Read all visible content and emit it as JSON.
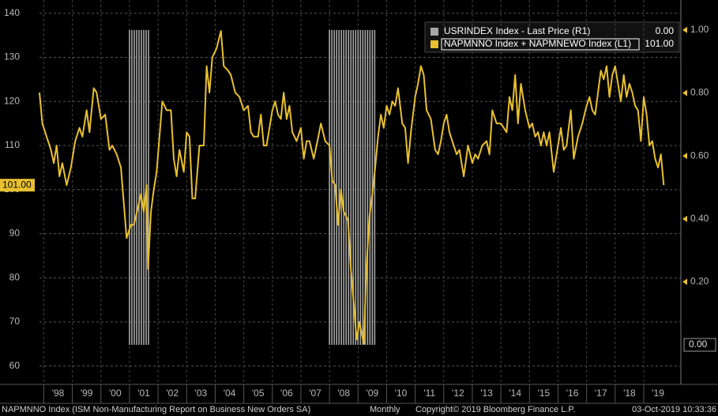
{
  "chart_data": {
    "type": "line",
    "footer": {
      "source": "NAPMNNO Index (ISM Non-Manufacturing Report on Business New Orders SA)",
      "frequency": "Monthly",
      "copyright": "Copyright© 2019 Bloomberg Finance L.P.",
      "timestamp": "03-Oct-2019 10:33:36"
    },
    "xlim": [
      1997.85,
      2020.3
    ],
    "xticks": [
      {
        "value": 1998.5,
        "label": "'98"
      },
      {
        "value": 1999.5,
        "label": "'99"
      },
      {
        "value": 2000.5,
        "label": "'00"
      },
      {
        "value": 2001.5,
        "label": "'01"
      },
      {
        "value": 2002.5,
        "label": "'02"
      },
      {
        "value": 2003.5,
        "label": "'03"
      },
      {
        "value": 2004.5,
        "label": "'04"
      },
      {
        "value": 2005.5,
        "label": "'05"
      },
      {
        "value": 2006.5,
        "label": "'06"
      },
      {
        "value": 2007.5,
        "label": "'07"
      },
      {
        "value": 2008.5,
        "label": "'08"
      },
      {
        "value": 2009.5,
        "label": "'09"
      },
      {
        "value": 2010.5,
        "label": "'10"
      },
      {
        "value": 2011.5,
        "label": "'11"
      },
      {
        "value": 2012.5,
        "label": "'12"
      },
      {
        "value": 2013.5,
        "label": "'13"
      },
      {
        "value": 2014.5,
        "label": "'14"
      },
      {
        "value": 2015.5,
        "label": "'15"
      },
      {
        "value": 2016.5,
        "label": "'16"
      },
      {
        "value": 2017.5,
        "label": "'17"
      },
      {
        "value": 2018.5,
        "label": "'18"
      },
      {
        "value": 2019.5,
        "label": "'19"
      }
    ],
    "ylim": [
      56,
      143
    ],
    "yticks": [
      60,
      70,
      80,
      90,
      100,
      110,
      120,
      130,
      140
    ],
    "y2lim": [
      -0.123,
      1.095
    ],
    "y2ticks": [
      {
        "value": 0.2,
        "label": "0.20"
      },
      {
        "value": 0.4,
        "label": "0.40"
      },
      {
        "value": 0.6,
        "label": "0.60"
      },
      {
        "value": 0.8,
        "label": "0.80"
      },
      {
        "value": 1.0,
        "label": "1.00"
      }
    ],
    "grid": true,
    "legend": "top-right",
    "series": [
      {
        "name": "USRINDEX Index - Last Price (R1)",
        "color": "#a6a6a6",
        "axis": "y2",
        "style": "bars",
        "last": {
          "value": 0,
          "label": "0.00"
        },
        "x": [
          2001.0,
          2001.083,
          2001.167,
          2001.25,
          2001.333,
          2001.417,
          2001.5,
          2001.583,
          2001.667,
          2008.0,
          2008.083,
          2008.167,
          2008.25,
          2008.333,
          2008.417,
          2008.5,
          2008.583,
          2008.667,
          2008.75,
          2008.833,
          2008.917,
          2009.0,
          2009.083,
          2009.167,
          2009.25,
          2009.333,
          2009.417,
          2009.5,
          2009.583
        ],
        "values": [
          1,
          1,
          1,
          1,
          1,
          1,
          1,
          1,
          1,
          1,
          1,
          1,
          1,
          1,
          1,
          1,
          1,
          1,
          1,
          1,
          1,
          1,
          1,
          1,
          1,
          1,
          1,
          1,
          1
        ]
      },
      {
        "name": "NAPMNNO Index + NAPMNEWO Index (L1)",
        "color": "#e8c030",
        "style": "line",
        "last": {
          "value": 101,
          "label": "101.00"
        },
        "x": [
          1997.85,
          1997.95,
          1998.1,
          1998.25,
          1998.35,
          1998.45,
          1998.55,
          1998.65,
          1998.8,
          1998.95,
          1999.1,
          1999.25,
          1999.35,
          1999.5,
          1999.6,
          1999.75,
          1999.85,
          2000.0,
          2000.15,
          2000.3,
          2000.4,
          2000.55,
          2000.7,
          2000.8,
          2000.9,
          2001.05,
          2001.15,
          2001.3,
          2001.4,
          2001.5,
          2001.6,
          2001.65,
          2001.75,
          2001.85,
          2001.95,
          2002.05,
          2002.15,
          2002.3,
          2002.45,
          2002.55,
          2002.65,
          2002.75,
          2002.9,
          2003.0,
          2003.1,
          2003.2,
          2003.3,
          2003.45,
          2003.6,
          2003.7,
          2003.8,
          2003.9,
          2004.05,
          2004.2,
          2004.3,
          2004.45,
          2004.55,
          2004.7,
          2004.85,
          2005.0,
          2005.15,
          2005.25,
          2005.35,
          2005.5,
          2005.6,
          2005.7,
          2005.8,
          2006.0,
          2006.1,
          2006.2,
          2006.3,
          2006.4,
          2006.5,
          2006.6,
          2006.7,
          2006.85,
          2007.0,
          2007.1,
          2007.2,
          2007.3,
          2007.45,
          2007.55,
          2007.7,
          2007.85,
          2008.0,
          2008.1,
          2008.2,
          2008.3,
          2008.4,
          2008.5,
          2008.65,
          2008.75,
          2008.85,
          2008.95,
          2009.05,
          2009.2,
          2009.3,
          2009.4,
          2009.5,
          2009.6,
          2009.7,
          2009.8,
          2009.9,
          2010.0,
          2010.1,
          2010.2,
          2010.3,
          2010.4,
          2010.55,
          2010.65,
          2010.75,
          2010.85,
          2011.0,
          2011.1,
          2011.2,
          2011.3,
          2011.4,
          2011.55,
          2011.7,
          2011.8,
          2011.9,
          2012.0,
          2012.1,
          2012.2,
          2012.3,
          2012.45,
          2012.55,
          2012.7,
          2012.85,
          2013.0,
          2013.1,
          2013.2,
          2013.35,
          2013.5,
          2013.6,
          2013.7,
          2013.85,
          2014.0,
          2014.1,
          2014.2,
          2014.3,
          2014.4,
          2014.5,
          2014.6,
          2014.7,
          2014.85,
          2015.0,
          2015.1,
          2015.2,
          2015.3,
          2015.4,
          2015.5,
          2015.6,
          2015.7,
          2015.85,
          2016.0,
          2016.1,
          2016.2,
          2016.3,
          2016.45,
          2016.55,
          2016.7,
          2016.85,
          2017.0,
          2017.1,
          2017.2,
          2017.3,
          2017.5,
          2017.6,
          2017.7,
          2017.8,
          2017.9,
          2018.0,
          2018.1,
          2018.2,
          2018.3,
          2018.4,
          2018.5,
          2018.6,
          2018.7,
          2018.8,
          2018.9,
          2019.0,
          2019.1,
          2019.2,
          2019.3,
          2019.4,
          2019.5,
          2019.6,
          2019.7
        ],
        "values": [
          122,
          115,
          112,
          109,
          106,
          110,
          103,
          106,
          101,
          105,
          111,
          114,
          112,
          118,
          113,
          123,
          122,
          116,
          117,
          109,
          110,
          108,
          105,
          97,
          89,
          92,
          92,
          96,
          99,
          95,
          101,
          82,
          95,
          100,
          104,
          112,
          120,
          118,
          118,
          107,
          103,
          109,
          104,
          113,
          112,
          98,
          98,
          110,
          110,
          128,
          122,
          130,
          132,
          136,
          128,
          127,
          126,
          122,
          121,
          118,
          119,
          113,
          112,
          112,
          117,
          110,
          110,
          118,
          120,
          117,
          116,
          122,
          116,
          119,
          113,
          111,
          114,
          107,
          111,
          111,
          107,
          110,
          115,
          111,
          110,
          102,
          101,
          92,
          100,
          95,
          93,
          82,
          74,
          66,
          70,
          65,
          83,
          94,
          99,
          105,
          112,
          117,
          114,
          119,
          117,
          120,
          119,
          123,
          115,
          114,
          106,
          113,
          121,
          124,
          128,
          126,
          118,
          116,
          109,
          108,
          111,
          115,
          117,
          113,
          111,
          108,
          109,
          103,
          110,
          106,
          108,
          107,
          110,
          111,
          108,
          118,
          115,
          115,
          114,
          113,
          121,
          118,
          126,
          115,
          124,
          118,
          114,
          115,
          112,
          113,
          110,
          113,
          110,
          113,
          104,
          110,
          114,
          109,
          110,
          118,
          107,
          112,
          115,
          119,
          121,
          118,
          117,
          127,
          125,
          128,
          121,
          126,
          128,
          124,
          120,
          126,
          121,
          124,
          122,
          119,
          118,
          111,
          121,
          117,
          110,
          111,
          107,
          105,
          108,
          101
        ]
      }
    ]
  }
}
